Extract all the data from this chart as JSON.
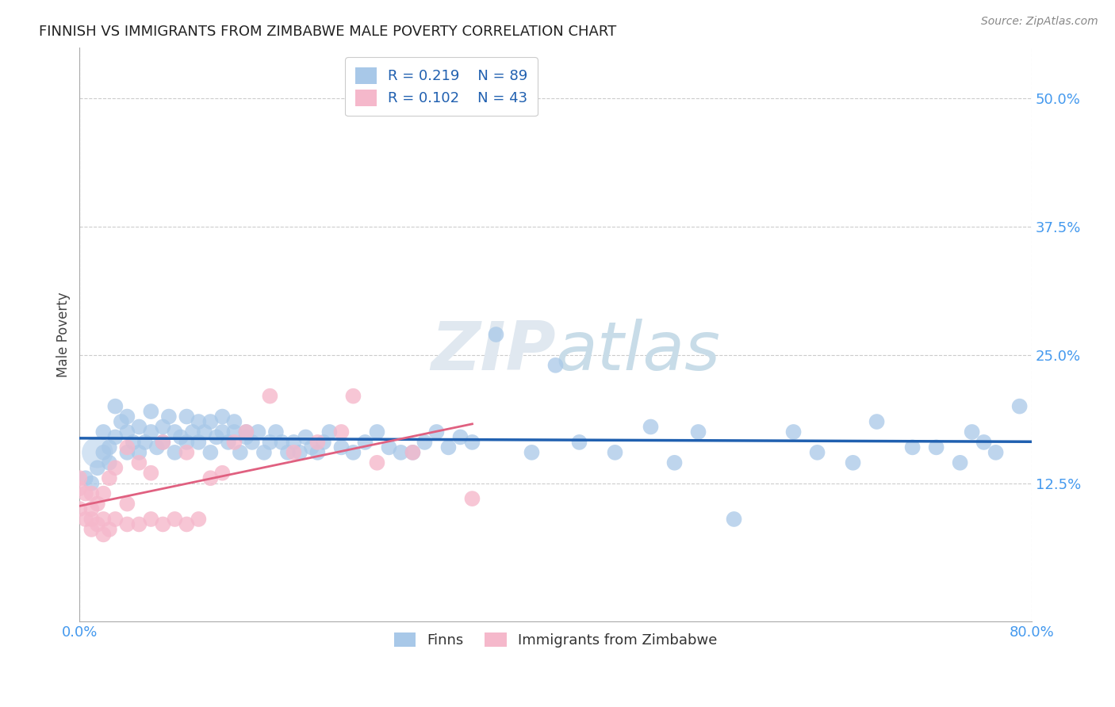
{
  "title": "FINNISH VS IMMIGRANTS FROM ZIMBABWE MALE POVERTY CORRELATION CHART",
  "source": "Source: ZipAtlas.com",
  "ylabel": "Male Poverty",
  "xmin": 0.0,
  "xmax": 0.8,
  "ymin": -0.01,
  "ymax": 0.55,
  "r_finns": 0.219,
  "n_finns": 89,
  "r_zimbabwe": 0.102,
  "n_zimbabwe": 43,
  "color_finns": "#a8c8e8",
  "color_zimbabwe": "#f5b8cb",
  "color_finns_line": "#2060b0",
  "color_zimbabwe_line": "#e06080",
  "grid_color": "#cccccc",
  "background_color": "#ffffff",
  "watermark_color": "#e0e8f0",
  "finns_x": [
    0.005,
    0.01,
    0.015,
    0.02,
    0.02,
    0.025,
    0.025,
    0.03,
    0.03,
    0.035,
    0.04,
    0.04,
    0.04,
    0.045,
    0.05,
    0.05,
    0.055,
    0.06,
    0.06,
    0.065,
    0.07,
    0.07,
    0.075,
    0.08,
    0.08,
    0.085,
    0.09,
    0.09,
    0.095,
    0.1,
    0.1,
    0.105,
    0.11,
    0.11,
    0.115,
    0.12,
    0.12,
    0.125,
    0.13,
    0.13,
    0.135,
    0.14,
    0.14,
    0.145,
    0.15,
    0.155,
    0.16,
    0.165,
    0.17,
    0.175,
    0.18,
    0.185,
    0.19,
    0.195,
    0.2,
    0.205,
    0.21,
    0.22,
    0.23,
    0.24,
    0.25,
    0.26,
    0.27,
    0.28,
    0.29,
    0.3,
    0.31,
    0.32,
    0.33,
    0.35,
    0.38,
    0.4,
    0.42,
    0.45,
    0.48,
    0.5,
    0.52,
    0.55,
    0.6,
    0.62,
    0.65,
    0.67,
    0.7,
    0.72,
    0.74,
    0.75,
    0.76,
    0.77,
    0.79
  ],
  "finns_y": [
    0.13,
    0.125,
    0.14,
    0.155,
    0.175,
    0.145,
    0.16,
    0.17,
    0.2,
    0.185,
    0.155,
    0.175,
    0.19,
    0.165,
    0.18,
    0.155,
    0.165,
    0.175,
    0.195,
    0.16,
    0.18,
    0.165,
    0.19,
    0.175,
    0.155,
    0.17,
    0.19,
    0.165,
    0.175,
    0.185,
    0.165,
    0.175,
    0.185,
    0.155,
    0.17,
    0.175,
    0.19,
    0.165,
    0.175,
    0.185,
    0.155,
    0.17,
    0.175,
    0.165,
    0.175,
    0.155,
    0.165,
    0.175,
    0.165,
    0.155,
    0.165,
    0.155,
    0.17,
    0.16,
    0.155,
    0.165,
    0.175,
    0.16,
    0.155,
    0.165,
    0.175,
    0.16,
    0.155,
    0.155,
    0.165,
    0.175,
    0.16,
    0.17,
    0.165,
    0.27,
    0.155,
    0.24,
    0.165,
    0.155,
    0.18,
    0.145,
    0.175,
    0.09,
    0.175,
    0.155,
    0.145,
    0.185,
    0.16,
    0.16,
    0.145,
    0.175,
    0.165,
    0.155,
    0.2
  ],
  "zimbabwe_x": [
    0.0,
    0.0,
    0.0,
    0.005,
    0.005,
    0.01,
    0.01,
    0.01,
    0.01,
    0.015,
    0.015,
    0.02,
    0.02,
    0.02,
    0.025,
    0.025,
    0.03,
    0.03,
    0.04,
    0.04,
    0.04,
    0.05,
    0.05,
    0.06,
    0.06,
    0.07,
    0.07,
    0.08,
    0.09,
    0.09,
    0.1,
    0.11,
    0.12,
    0.13,
    0.14,
    0.16,
    0.18,
    0.2,
    0.22,
    0.23,
    0.25,
    0.28,
    0.33
  ],
  "zimbabwe_y": [
    0.1,
    0.12,
    0.13,
    0.09,
    0.115,
    0.08,
    0.09,
    0.1,
    0.115,
    0.085,
    0.105,
    0.075,
    0.09,
    0.115,
    0.08,
    0.13,
    0.09,
    0.14,
    0.085,
    0.105,
    0.16,
    0.085,
    0.145,
    0.09,
    0.135,
    0.085,
    0.165,
    0.09,
    0.085,
    0.155,
    0.09,
    0.13,
    0.135,
    0.165,
    0.175,
    0.21,
    0.155,
    0.165,
    0.175,
    0.21,
    0.145,
    0.155,
    0.11
  ]
}
